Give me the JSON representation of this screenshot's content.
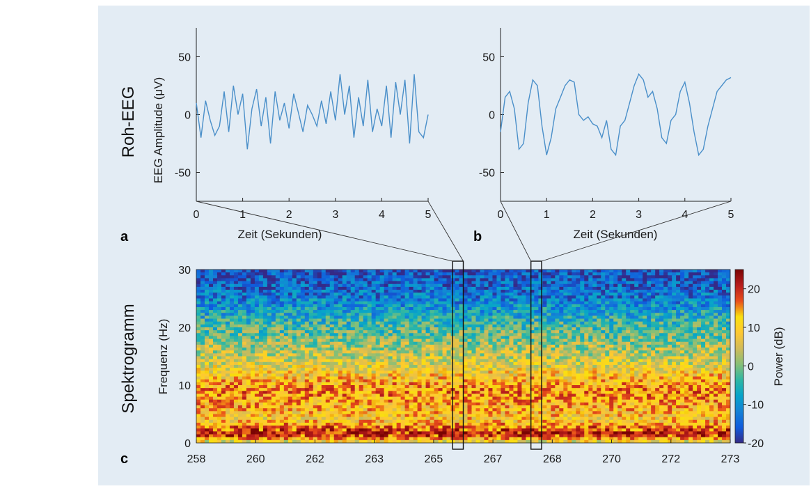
{
  "chart_data": [
    {
      "type": "line",
      "panel_label": "a",
      "row_label": "Roh-EEG",
      "ylabel": "EEG Amplitude (μV)",
      "xlabel": "Zeit (Sekunden)",
      "xlim": [
        0,
        5
      ],
      "ylim": [
        -75,
        75
      ],
      "xticks": [
        "0",
        "1",
        "2",
        "3",
        "4",
        "5"
      ],
      "yticks": [
        "50",
        "0",
        "-50"
      ],
      "x": [
        0,
        0.1,
        0.2,
        0.3,
        0.4,
        0.5,
        0.6,
        0.7,
        0.8,
        0.9,
        1.0,
        1.1,
        1.2,
        1.3,
        1.4,
        1.5,
        1.6,
        1.7,
        1.8,
        1.9,
        2.0,
        2.1,
        2.2,
        2.3,
        2.4,
        2.5,
        2.6,
        2.7,
        2.8,
        2.9,
        3.0,
        3.1,
        3.2,
        3.3,
        3.4,
        3.5,
        3.6,
        3.7,
        3.8,
        3.9,
        4.0,
        4.1,
        4.2,
        4.3,
        4.4,
        4.5,
        4.6,
        4.7,
        4.8,
        4.9,
        5.0
      ],
      "values": [
        10,
        -20,
        12,
        -5,
        -18,
        -10,
        20,
        -15,
        25,
        0,
        18,
        -30,
        5,
        22,
        -10,
        15,
        -25,
        20,
        -5,
        10,
        -12,
        18,
        2,
        -15,
        8,
        0,
        -10,
        12,
        -8,
        20,
        -5,
        35,
        0,
        25,
        -20,
        15,
        -10,
        30,
        -15,
        5,
        -10,
        25,
        -20,
        28,
        0,
        30,
        -25,
        35,
        -15,
        -20,
        0
      ]
    },
    {
      "type": "line",
      "panel_label": "b",
      "xlabel": "Zeit (Sekunden)",
      "xlim": [
        0,
        5
      ],
      "ylim": [
        -75,
        75
      ],
      "xticks": [
        "0",
        "1",
        "2",
        "3",
        "4",
        "5"
      ],
      "yticks": [
        "50",
        "0",
        "-50"
      ],
      "x": [
        0,
        0.1,
        0.2,
        0.3,
        0.4,
        0.5,
        0.6,
        0.7,
        0.8,
        0.9,
        1.0,
        1.1,
        1.2,
        1.3,
        1.4,
        1.5,
        1.6,
        1.7,
        1.8,
        1.9,
        2.0,
        2.1,
        2.2,
        2.3,
        2.4,
        2.5,
        2.6,
        2.7,
        2.8,
        2.9,
        3.0,
        3.1,
        3.2,
        3.3,
        3.4,
        3.5,
        3.6,
        3.7,
        3.8,
        3.9,
        4.0,
        4.1,
        4.2,
        4.3,
        4.4,
        4.5,
        4.6,
        4.7,
        4.8,
        4.9,
        5.0
      ],
      "values": [
        -15,
        15,
        20,
        5,
        -30,
        -25,
        10,
        30,
        25,
        -10,
        -35,
        -20,
        5,
        15,
        25,
        30,
        28,
        0,
        -5,
        -2,
        -8,
        -10,
        -20,
        -5,
        -30,
        -35,
        -10,
        -5,
        10,
        25,
        35,
        30,
        15,
        20,
        5,
        -20,
        -25,
        -5,
        0,
        20,
        28,
        10,
        -15,
        -35,
        -30,
        -10,
        5,
        20,
        25,
        30,
        32
      ]
    },
    {
      "type": "heatmap",
      "panel_label": "c",
      "row_label": "Spektrogramm",
      "ylabel": "Frequenz (Hz)",
      "colorbar_label": "Power (dB)",
      "xlim": [
        258,
        273
      ],
      "ylim": [
        0,
        30
      ],
      "xticks": [
        "258",
        "260",
        "262",
        "263",
        "265",
        "267",
        "268",
        "270",
        "272",
        "273"
      ],
      "yticks": [
        "30",
        "20",
        "10",
        "0"
      ],
      "colorbar_range": [
        -20,
        25
      ],
      "colorbar_ticks": [
        "20",
        "10",
        "0",
        "-10",
        "-20"
      ],
      "colormap": [
        "#352a87",
        "#0f5cdd",
        "#1481d6",
        "#06a4ca",
        "#2eb7a4",
        "#87bf77",
        "#d1bb59",
        "#fec832",
        "#f9e00f",
        "#e94e1b",
        "#b71c1c",
        "#7a0403"
      ],
      "band_profile": [
        {
          "hz": 0,
          "db": 5
        },
        {
          "hz": 1.5,
          "db": 22
        },
        {
          "hz": 4,
          "db": 10
        },
        {
          "hz": 9,
          "db": 15
        },
        {
          "hz": 14,
          "db": 6
        },
        {
          "hz": 20,
          "db": -3
        },
        {
          "hz": 25,
          "db": -12
        },
        {
          "hz": 30,
          "db": -17
        }
      ],
      "zoom_windows": [
        {
          "from": 265.2,
          "to": 265.5,
          "detail_panel": "a"
        },
        {
          "from": 267.4,
          "to": 267.7,
          "detail_panel": "b"
        }
      ]
    }
  ]
}
